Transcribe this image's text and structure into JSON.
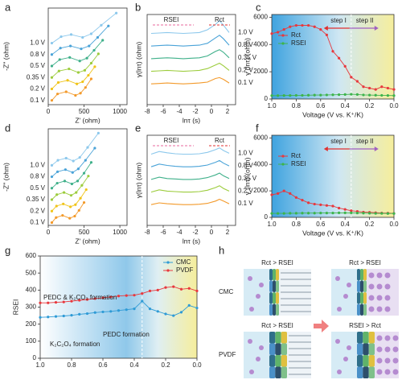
{
  "panel_labels": [
    "a",
    "b",
    "c",
    "d",
    "e",
    "f",
    "g",
    "h"
  ],
  "chart_data": [
    {
      "type": "line",
      "markers": true,
      "legend": "left",
      "xlabel": "Z' (ohm)",
      "ylabel": "-Z'' (ohm)",
      "xlim": [
        0,
        1100
      ],
      "xticks": [
        0,
        500,
        1000
      ],
      "ylim": [
        0,
        1350
      ],
      "series": [
        {
          "name": "1.0 V",
          "color": "#8cc8ec",
          "x": [
            50,
            180,
            320,
            480,
            600,
            740,
            950
          ],
          "values": [
            860,
            950,
            980,
            940,
            990,
            1110,
            1280
          ]
        },
        {
          "name": "0.8 V",
          "color": "#4aa3d8",
          "x": [
            50,
            170,
            310,
            460,
            570,
            690,
            840
          ],
          "values": [
            700,
            790,
            820,
            780,
            820,
            940,
            1100
          ]
        },
        {
          "name": "0.5 V",
          "color": "#3fb08a",
          "x": [
            50,
            160,
            300,
            440,
            540,
            640,
            760
          ],
          "values": [
            540,
            630,
            660,
            610,
            650,
            760,
            900
          ]
        },
        {
          "name": "0.35 V",
          "color": "#9ccc3c",
          "x": [
            50,
            150,
            290,
            420,
            510,
            600,
            700
          ],
          "values": [
            380,
            470,
            500,
            450,
            480,
            580,
            710
          ]
        },
        {
          "name": "0.2 V",
          "color": "#f0c419",
          "x": [
            50,
            140,
            270,
            400,
            480,
            560,
            650
          ],
          "values": [
            220,
            310,
            340,
            290,
            320,
            410,
            530
          ]
        },
        {
          "name": "0.1 V",
          "color": "#f39a2b",
          "x": [
            50,
            130,
            250,
            380,
            450,
            520,
            600
          ],
          "values": [
            60,
            150,
            180,
            130,
            160,
            240,
            360
          ]
        }
      ]
    },
    {
      "type": "line",
      "markers": false,
      "legend": "right",
      "xlabel": "lnτ (s)",
      "ylabel": "γ(lnτ) (ohm)",
      "annotations": [
        "RSEI",
        "Rct"
      ],
      "xlim": [
        -8,
        3
      ],
      "xticks": [
        -8,
        -6,
        -4,
        -2,
        0,
        2
      ],
      "ylim": [
        0,
        100
      ],
      "x": [
        -7.5,
        -6.5,
        -5.5,
        -4.5,
        -3.5,
        -2.5,
        -1.5,
        -0.5,
        0.5,
        1,
        1.5,
        2.2
      ],
      "series": [
        {
          "name": "1.0 V",
          "color": "#8cc8ec",
          "values": [
            79,
            79.5,
            80,
            79.5,
            79,
            79.5,
            80,
            83,
            89,
            93,
            88,
            80
          ]
        },
        {
          "name": "0.8 V",
          "color": "#4aa3d8",
          "values": [
            65,
            65.5,
            66,
            65.5,
            65,
            65.5,
            66,
            68,
            74,
            77,
            73,
            66
          ]
        },
        {
          "name": "0.35 V",
          "color": "#3fb08a",
          "values": [
            51,
            51.5,
            52,
            51.5,
            51,
            51.5,
            52,
            54,
            59,
            61,
            58,
            52
          ]
        },
        {
          "name": "0.2 V",
          "color": "#9ccc3c",
          "values": [
            37,
            37.5,
            38,
            37.5,
            37,
            37.5,
            38,
            40,
            44,
            46,
            43,
            38
          ]
        },
        {
          "name": "0.1 V",
          "color": "#f39a2b",
          "values": [
            23,
            23.5,
            24,
            23.5,
            23,
            23.5,
            24,
            25,
            29,
            30,
            28,
            24
          ]
        }
      ]
    },
    {
      "type": "line",
      "markers": true,
      "legend": "upper left",
      "shading": true,
      "divider": 0.35,
      "xlabel": "Voltage (V vs. K⁺/K)",
      "ylabel": "γ (lnτ) (ohm)",
      "annotations": [
        "step I",
        "step II"
      ],
      "xlim": [
        1.0,
        0.0
      ],
      "xticks": [
        {
          "value": 1,
          "label": "1.0"
        },
        0.8,
        0.6,
        0.4,
        0.2,
        {
          "value": 0,
          "label": "0.0"
        }
      ],
      "ylim": [
        0,
        6200
      ],
      "yticks": [
        0,
        2000,
        4000,
        6000
      ],
      "x": [
        1.0,
        0.95,
        0.9,
        0.85,
        0.8,
        0.75,
        0.7,
        0.65,
        0.6,
        0.55,
        0.5,
        0.45,
        0.4,
        0.35,
        0.3,
        0.25,
        0.2,
        0.15,
        0.1,
        0.05,
        0.0
      ],
      "series": [
        {
          "name": "Rct",
          "color": "#e8383d",
          "values": [
            4800,
            4900,
            5100,
            5300,
            5400,
            5400,
            5400,
            5300,
            5100,
            4700,
            3500,
            3000,
            2400,
            1600,
            1300,
            900,
            800,
            700,
            900,
            800,
            700
          ]
        },
        {
          "name": "RSEI",
          "color": "#3cb44b",
          "values": [
            250,
            250,
            260,
            260,
            270,
            270,
            280,
            290,
            290,
            300,
            310,
            320,
            330,
            350,
            330,
            300,
            290,
            280,
            270,
            260,
            250
          ]
        }
      ]
    },
    {
      "type": "line",
      "markers": true,
      "legend": "left",
      "xlabel": "Z' (ohm)",
      "ylabel": "-Z'' (ohm)",
      "xlim": [
        0,
        1100
      ],
      "xticks": [
        0,
        500,
        1000
      ],
      "ylim": [
        0,
        1350
      ],
      "series": [
        {
          "name": "1.0 V",
          "color": "#8cc8ec",
          "x": [
            50,
            135,
            250,
            350,
            440,
            550,
            700
          ],
          "values": [
            840,
            910,
            940,
            900,
            950,
            1090,
            1290
          ]
        },
        {
          "name": "0.8 V",
          "color": "#4aa3d8",
          "x": [
            50,
            130,
            240,
            340,
            420,
            520,
            650
          ],
          "values": [
            680,
            750,
            780,
            740,
            790,
            910,
            1080
          ]
        },
        {
          "name": "0.5 V",
          "color": "#3fb08a",
          "x": [
            50,
            125,
            230,
            330,
            410,
            500,
            600
          ],
          "values": [
            520,
            590,
            620,
            580,
            620,
            730,
            880
          ]
        },
        {
          "name": "0.35 V",
          "color": "#9ccc3c",
          "x": [
            50,
            120,
            220,
            320,
            390,
            470,
            560
          ],
          "values": [
            360,
            430,
            460,
            420,
            460,
            560,
            690
          ]
        },
        {
          "name": "0.2 V",
          "color": "#f0c419",
          "x": [
            50,
            115,
            210,
            310,
            380,
            450,
            530
          ],
          "values": [
            200,
            270,
            300,
            260,
            290,
            380,
            500
          ]
        },
        {
          "name": "0.1 V",
          "color": "#f39a2b",
          "x": [
            50,
            110,
            200,
            300,
            370,
            430,
            500
          ],
          "values": [
            40,
            110,
            140,
            100,
            130,
            210,
            320
          ]
        }
      ]
    },
    {
      "type": "line",
      "markers": false,
      "legend": "right",
      "xlabel": "lnτ (s)",
      "ylabel": "γ(lnτ) (ohm)",
      "annotations": [
        "RSEI",
        "Rct"
      ],
      "xlim": [
        -8,
        3
      ],
      "xticks": [
        -8,
        -6,
        -4,
        -2,
        0,
        2
      ],
      "ylim": [
        0,
        100
      ],
      "x": [
        -7.5,
        -6.5,
        -5.5,
        -4.5,
        -3.5,
        -2.5,
        -1.5,
        -0.5,
        0.5,
        1,
        1.5,
        2.2
      ],
      "series": [
        {
          "name": "1.0 V",
          "color": "#8cc8ec",
          "values": [
            79,
            82,
            80.5,
            79.5,
            79,
            79,
            79.5,
            81,
            84,
            86,
            83,
            80
          ]
        },
        {
          "name": "0.8 V",
          "color": "#4aa3d8",
          "values": [
            65,
            68,
            66.5,
            65.5,
            65,
            65,
            65.5,
            67,
            70,
            72,
            69,
            66
          ]
        },
        {
          "name": "0.35 V",
          "color": "#3fb08a",
          "values": [
            51,
            53.5,
            52,
            51.5,
            51,
            51,
            51.5,
            53,
            56,
            58,
            55,
            52
          ]
        },
        {
          "name": "0.2 V",
          "color": "#9ccc3c",
          "values": [
            37,
            39.5,
            38,
            37.5,
            37,
            37,
            37.5,
            39,
            42,
            44,
            41,
            38
          ]
        },
        {
          "name": "0.1 V",
          "color": "#f39a2b",
          "values": [
            23,
            25,
            24,
            23.5,
            23,
            23,
            23.5,
            24.5,
            27,
            29,
            27,
            24
          ]
        }
      ]
    },
    {
      "type": "line",
      "markers": true,
      "legend": "upper left",
      "shading": true,
      "divider": 0.35,
      "xlabel": "Voltage (V vs. K⁺/K)",
      "ylabel": "γ (lnτ) (ohm)",
      "annotations": [
        "step I",
        "step II"
      ],
      "xlim": [
        1.0,
        0.0
      ],
      "xticks": [
        {
          "value": 1,
          "label": "1.0"
        },
        0.8,
        0.6,
        0.4,
        0.2,
        {
          "value": 0,
          "label": "0.0"
        }
      ],
      "ylim": [
        0,
        6200
      ],
      "yticks": [
        0,
        2000,
        4000,
        6000
      ],
      "x": [
        1.0,
        0.95,
        0.9,
        0.85,
        0.8,
        0.75,
        0.7,
        0.65,
        0.6,
        0.55,
        0.5,
        0.45,
        0.4,
        0.35,
        0.3,
        0.25,
        0.2,
        0.15,
        0.1,
        0.05,
        0.0
      ],
      "series": [
        {
          "name": "Rct",
          "color": "#e8383d",
          "values": [
            1700,
            1800,
            2000,
            1800,
            1500,
            1300,
            1100,
            1000,
            950,
            900,
            850,
            700,
            600,
            500,
            450,
            400,
            380,
            350,
            330,
            320,
            300
          ]
        },
        {
          "name": "RSEI",
          "color": "#3cb44b",
          "values": [
            300,
            300,
            300,
            310,
            310,
            320,
            320,
            320,
            330,
            330,
            330,
            340,
            340,
            340,
            330,
            320,
            310,
            300,
            300,
            290,
            290
          ]
        }
      ]
    },
    {
      "type": "line",
      "markers": true,
      "legend": "upper right",
      "shading": true,
      "divider": 0.35,
      "ylabel": "RSEI",
      "annotations": [
        "PEDC & K₂CO₃ formation",
        "K₂C₂O₄ formation",
        "PEDC formation"
      ],
      "xlim": [
        1.0,
        0.0
      ],
      "xticks": [
        {
          "value": 1,
          "label": "1.0"
        },
        0.8,
        0.6,
        0.4,
        0.2,
        {
          "value": 0,
          "label": "0.0"
        }
      ],
      "ylim": [
        0,
        600
      ],
      "yticks": [
        0,
        100,
        200,
        300,
        400,
        500,
        600
      ],
      "x": [
        1.0,
        0.95,
        0.9,
        0.85,
        0.8,
        0.75,
        0.7,
        0.65,
        0.6,
        0.55,
        0.5,
        0.45,
        0.4,
        0.35,
        0.3,
        0.25,
        0.2,
        0.15,
        0.1,
        0.05,
        0.0
      ],
      "series": [
        {
          "name": "CMC",
          "color": "#2f9bd6",
          "values": [
            240,
            242,
            245,
            248,
            252,
            258,
            262,
            268,
            272,
            275,
            280,
            285,
            290,
            335,
            290,
            275,
            260,
            250,
            270,
            310,
            295
          ]
        },
        {
          "name": "PVDF",
          "color": "#e8383d",
          "values": [
            325,
            325,
            328,
            330,
            335,
            340,
            345,
            350,
            355,
            360,
            365,
            368,
            370,
            380,
            395,
            400,
            415,
            420,
            405,
            410,
            395
          ]
        }
      ]
    }
  ],
  "diagram": {
    "rows": [
      {
        "label": "CMC",
        "before": "Rct > RSEI",
        "after": "Rct > RSEI"
      },
      {
        "label": "PVDF",
        "before": "Rct > RSEI",
        "after": "RSEI > Rct"
      }
    ]
  }
}
